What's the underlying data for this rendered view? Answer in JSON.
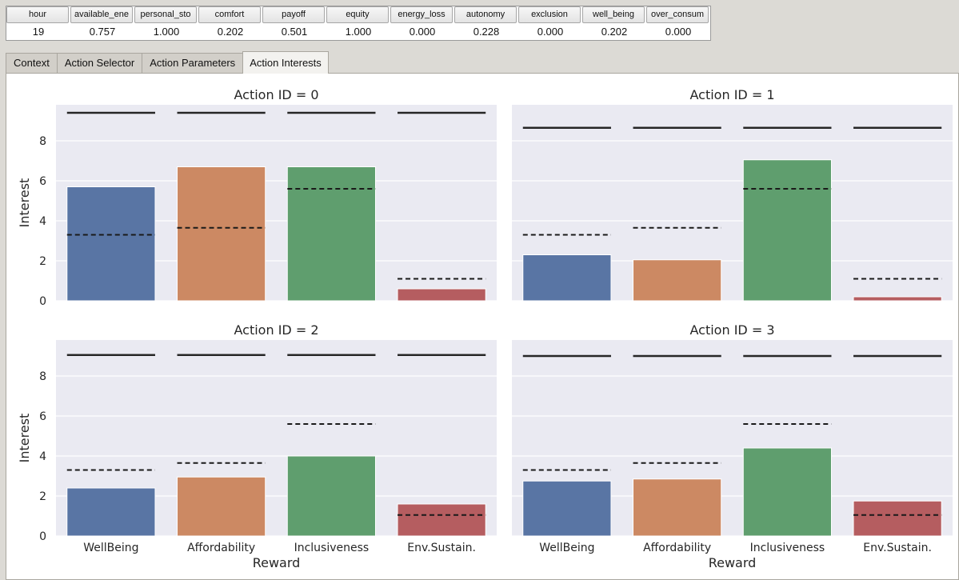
{
  "state_table": {
    "headers": [
      "hour",
      "available_ene",
      "personal_sto",
      "comfort",
      "payoff",
      "equity",
      "energy_loss",
      "autonomy",
      "exclusion",
      "well_being",
      "over_consum"
    ],
    "values": [
      "19",
      "0.757",
      "1.000",
      "0.202",
      "0.501",
      "1.000",
      "0.000",
      "0.228",
      "0.000",
      "0.202",
      "0.000"
    ]
  },
  "tabs": [
    {
      "label": "Context",
      "active": false
    },
    {
      "label": "Action Selector",
      "active": false
    },
    {
      "label": "Action Parameters",
      "active": false
    },
    {
      "label": "Action Interests",
      "active": true
    }
  ],
  "colors": {
    "bar_colors": [
      "#5975a4",
      "#cc8963",
      "#5f9e6e",
      "#b55d60"
    ],
    "facet_background": "#eaeaf2"
  },
  "chart_data": {
    "type": "bar",
    "facet_titles": [
      "Action ID = 0",
      "Action ID = 1",
      "Action ID = 2",
      "Action ID = 3"
    ],
    "categories": [
      "WellBeing",
      "Affordability",
      "Inclusiveness",
      "Env.Sustain."
    ],
    "xlabel": "Reward",
    "ylabel": "Interest",
    "yticks": [
      0,
      2,
      4,
      6,
      8
    ],
    "ylim": [
      0,
      9.8
    ],
    "facets": [
      {
        "action_id": 0,
        "values": [
          5.7,
          6.7,
          6.7,
          0.6
        ],
        "dashed": [
          3.3,
          3.65,
          5.6,
          1.1
        ],
        "solid": [
          9.4,
          9.4,
          9.4,
          9.4
        ]
      },
      {
        "action_id": 1,
        "values": [
          2.3,
          2.05,
          7.05,
          0.2
        ],
        "dashed": [
          3.3,
          3.65,
          5.6,
          1.1
        ],
        "solid": [
          8.65,
          8.65,
          8.65,
          8.65
        ]
      },
      {
        "action_id": 2,
        "values": [
          2.4,
          2.95,
          4.0,
          1.6
        ],
        "dashed": [
          3.3,
          3.65,
          5.6,
          1.05
        ],
        "solid": [
          9.05,
          9.05,
          9.05,
          9.05
        ]
      },
      {
        "action_id": 3,
        "values": [
          2.75,
          2.85,
          4.4,
          1.75
        ],
        "dashed": [
          3.3,
          3.65,
          5.6,
          1.05
        ],
        "solid": [
          9.0,
          9.0,
          9.0,
          9.0
        ]
      }
    ]
  }
}
